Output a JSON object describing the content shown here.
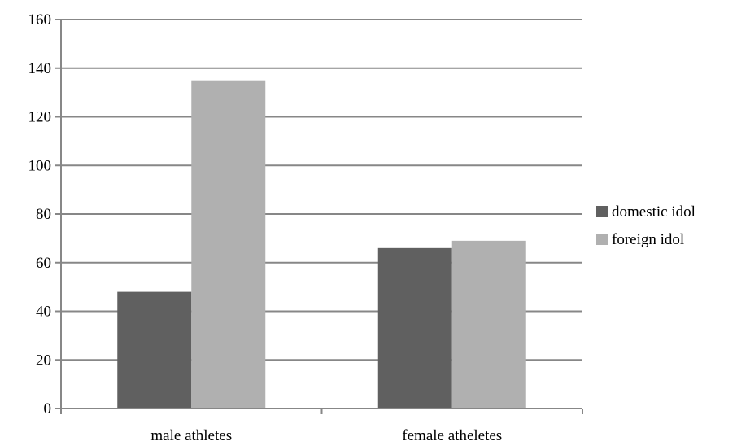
{
  "chart_data": {
    "type": "bar",
    "title": "",
    "xlabel": "",
    "ylabel": "",
    "categories": [
      "male athletes",
      "female atheletes"
    ],
    "series": [
      {
        "name": "domestic idol",
        "values": [
          48,
          66
        ],
        "color": "#606060"
      },
      {
        "name": "foreign idol",
        "values": [
          135,
          69
        ],
        "color": "#b0b0b0"
      }
    ],
    "ylim": [
      0,
      160
    ],
    "yticks": [
      "0",
      "20",
      "40",
      "60",
      "80",
      "100",
      "120",
      "140",
      "160"
    ],
    "grid": true,
    "legend_position": "right"
  }
}
